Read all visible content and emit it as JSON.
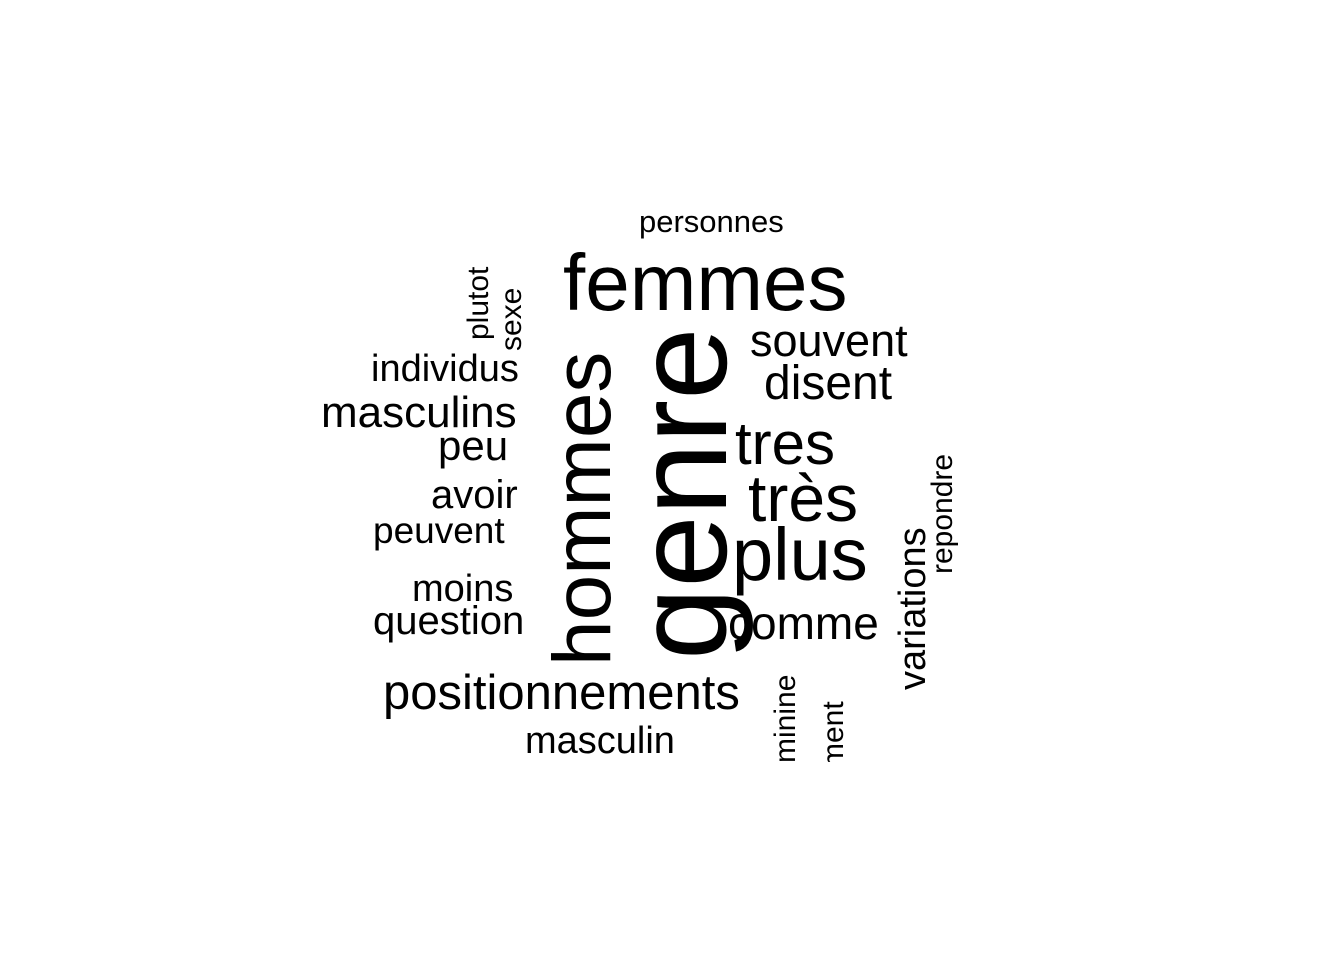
{
  "word_cloud": {
    "color": "#000000",
    "background": "#ffffff",
    "words": [
      {
        "text": "genre",
        "orientation": "vertical"
      },
      {
        "text": "femmes",
        "orientation": "horizontal"
      },
      {
        "text": "hommes",
        "orientation": "vertical"
      },
      {
        "text": "plus",
        "orientation": "horizontal"
      },
      {
        "text": "très",
        "orientation": "horizontal"
      },
      {
        "text": "tres",
        "orientation": "horizontal"
      },
      {
        "text": "positionnements",
        "orientation": "horizontal"
      },
      {
        "text": "souvent",
        "orientation": "horizontal"
      },
      {
        "text": "disent",
        "orientation": "horizontal"
      },
      {
        "text": "comme",
        "orientation": "horizontal"
      },
      {
        "text": "masculins",
        "orientation": "horizontal"
      },
      {
        "text": "variations",
        "orientation": "vertical"
      },
      {
        "text": "individus",
        "orientation": "horizontal"
      },
      {
        "text": "question",
        "orientation": "horizontal"
      },
      {
        "text": "avoir",
        "orientation": "horizontal"
      },
      {
        "text": "peu",
        "orientation": "horizontal"
      },
      {
        "text": "peuvent",
        "orientation": "horizontal"
      },
      {
        "text": "moins",
        "orientation": "horizontal"
      },
      {
        "text": "masculin",
        "orientation": "horizontal"
      },
      {
        "text": "personnes",
        "orientation": "horizontal"
      },
      {
        "text": "plutot",
        "orientation": "vertical"
      },
      {
        "text": "sexe",
        "orientation": "vertical"
      },
      {
        "text": "repondre",
        "orientation": "vertical"
      },
      {
        "text": "feminine",
        "orientation": "vertical"
      },
      {
        "text": "ment",
        "orientation": "vertical"
      }
    ]
  }
}
